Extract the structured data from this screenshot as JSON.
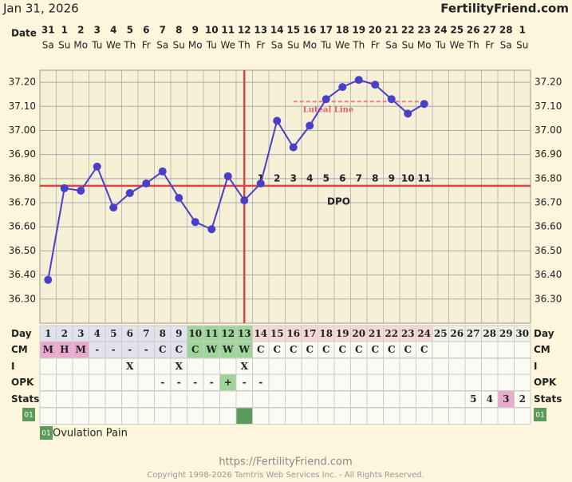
{
  "header": {
    "date": "Jan 31, 2026",
    "site": "FertilityFriend.com"
  },
  "chart_data": {
    "type": "line",
    "x_label": "Date",
    "categories": [
      "31",
      "1",
      "2",
      "3",
      "4",
      "5",
      "6",
      "7",
      "8",
      "9",
      "10",
      "11",
      "12",
      "13",
      "14",
      "15",
      "16",
      "17",
      "18",
      "19",
      "20",
      "21",
      "22",
      "23",
      "24",
      "25",
      "26",
      "27",
      "28",
      "1"
    ],
    "weekdays": [
      "Sa",
      "Su",
      "Mo",
      "Tu",
      "We",
      "Th",
      "Fr",
      "Sa",
      "Su",
      "Mo",
      "Tu",
      "We",
      "Th",
      "Fr",
      "Sa",
      "Su",
      "Mo",
      "Tu",
      "We",
      "Th",
      "Fr",
      "Sa",
      "Su",
      "Mo",
      "Tu",
      "We",
      "Th",
      "Fr",
      "Sa",
      "Su"
    ],
    "values": [
      36.38,
      36.76,
      36.75,
      36.85,
      36.68,
      36.74,
      36.78,
      36.83,
      36.72,
      36.62,
      36.59,
      36.81,
      36.71,
      36.78,
      37.04,
      36.93,
      37.02,
      37.13,
      37.18,
      37.21,
      37.19,
      37.13,
      37.07,
      37.11,
      null,
      null,
      null,
      null,
      null,
      null
    ],
    "color": "#4b3fc9",
    "ylim": [
      36.2,
      37.25
    ],
    "yticks": [
      {
        "value": 36.3,
        "label": "36.30"
      },
      {
        "value": 36.4,
        "label": "36.40"
      },
      {
        "value": 36.5,
        "label": "36.50"
      },
      {
        "value": 36.6,
        "label": "36.60"
      },
      {
        "value": 36.7,
        "label": "36.70"
      },
      {
        "value": 36.8,
        "label": "36.80"
      },
      {
        "value": 36.9,
        "label": "36.90"
      },
      {
        "value": 37.0,
        "label": "37.00"
      },
      {
        "value": 37.1,
        "label": "37.10"
      },
      {
        "value": 37.2,
        "label": "37.20"
      }
    ],
    "grid": true,
    "coverline": {
      "value": 36.77,
      "color": "#d94848"
    },
    "ovulation_day": 13,
    "dpo": [
      null,
      null,
      null,
      null,
      null,
      null,
      null,
      null,
      null,
      null,
      null,
      null,
      null,
      1,
      2,
      3,
      4,
      5,
      6,
      7,
      8,
      9,
      10,
      11,
      null,
      null,
      null,
      null,
      null,
      null
    ],
    "dpo_label": "DPO",
    "luteal_line": {
      "label": "Luteal Line",
      "value": 37.12,
      "from_day": 16,
      "to_day": 24,
      "color": "#f08080"
    }
  },
  "table": {
    "row_labels": [
      "Day",
      "CM",
      "I",
      "OPK",
      "Stats"
    ],
    "days": [
      1,
      2,
      3,
      4,
      5,
      6,
      7,
      8,
      9,
      10,
      11,
      12,
      13,
      14,
      15,
      16,
      17,
      18,
      19,
      20,
      21,
      22,
      23,
      24,
      25,
      26,
      27,
      28,
      29,
      30
    ],
    "cm": [
      "M",
      "H",
      "M",
      "-",
      "-",
      "-",
      "-",
      "C",
      "C",
      "C",
      "W",
      "W",
      "W",
      "C",
      "C",
      "C",
      "C",
      "C",
      "C",
      "C",
      "C",
      "C",
      "C",
      "C",
      null,
      null,
      null,
      null,
      null,
      null
    ],
    "i": [
      null,
      null,
      null,
      null,
      null,
      "X",
      null,
      null,
      "X",
      null,
      null,
      null,
      "X",
      null,
      null,
      null,
      null,
      null,
      null,
      null,
      null,
      null,
      null,
      null,
      null,
      null,
      null,
      null,
      null,
      null
    ],
    "opk": [
      null,
      null,
      null,
      null,
      null,
      null,
      null,
      "-",
      "-",
      "-",
      "-",
      "+",
      "-",
      "-",
      null,
      null,
      null,
      null,
      null,
      null,
      null,
      null,
      null,
      null,
      null,
      null,
      null,
      null,
      null,
      null
    ],
    "stats": [
      null,
      null,
      null,
      null,
      null,
      null,
      null,
      null,
      null,
      null,
      null,
      null,
      null,
      null,
      null,
      null,
      null,
      null,
      null,
      null,
      null,
      null,
      null,
      null,
      null,
      null,
      5,
      4,
      3,
      2
    ],
    "day_fills": [
      "#e2e2ec",
      "#e2e2ec",
      "#e2e2ec",
      "#e2e2ec",
      "#e2e2ec",
      "#e2e2ec",
      "#e2e2ec",
      "#e2e2ec",
      "#e2e2ec",
      "#9fd49a",
      "#9fd49a",
      "#9fd49a",
      "#9fd49a",
      "#f7d9d4",
      "#f7d9d4",
      "#f7d9d4",
      "#f7d9d4",
      "#f7d9d4",
      "#f7d9d4",
      "#f7d9d4",
      "#f7d9d4",
      "#f7d9d4",
      "#f7d9d4",
      "#f7d9d4",
      "#f1efe6",
      "#f1efe6",
      "#f1efe6",
      "#f1efe6",
      "#f1efe6",
      "#f1efe6"
    ],
    "cm_fills": [
      "#eaa9cf",
      "#eaa9cf",
      "#eaa9cf",
      "#e2e2ec",
      "#e2e2ec",
      "#e2e2ec",
      "#e2e2ec",
      "#e2e2ec",
      "#e2e2ec",
      "#9fd49a",
      "#9fd49a",
      "#9fd49a",
      "#9fd49a",
      null,
      null,
      null,
      null,
      null,
      null,
      null,
      null,
      null,
      null,
      null,
      null,
      null,
      null,
      null,
      null,
      null
    ],
    "opk_fills": [
      null,
      null,
      null,
      null,
      null,
      null,
      null,
      null,
      null,
      null,
      null,
      "#9fd49a",
      null,
      null,
      null,
      null,
      null,
      null,
      null,
      null,
      null,
      null,
      null,
      null,
      null,
      null,
      null,
      null,
      null,
      null
    ],
    "stats_fills": [
      null,
      null,
      null,
      null,
      null,
      null,
      null,
      null,
      null,
      null,
      null,
      null,
      null,
      null,
      null,
      null,
      null,
      null,
      null,
      null,
      null,
      null,
      null,
      null,
      null,
      null,
      null,
      null,
      "#eaa9cf",
      null
    ]
  },
  "legend": {
    "code": "01",
    "label": "Ovulation Pain",
    "color": "#5a9a5a",
    "day": 13
  },
  "footer": {
    "url": "https://FertilityFriend.com",
    "copyright": "Copyright 1998-2026 Tamtris Web Services Inc. - All Rights Reserved."
  }
}
